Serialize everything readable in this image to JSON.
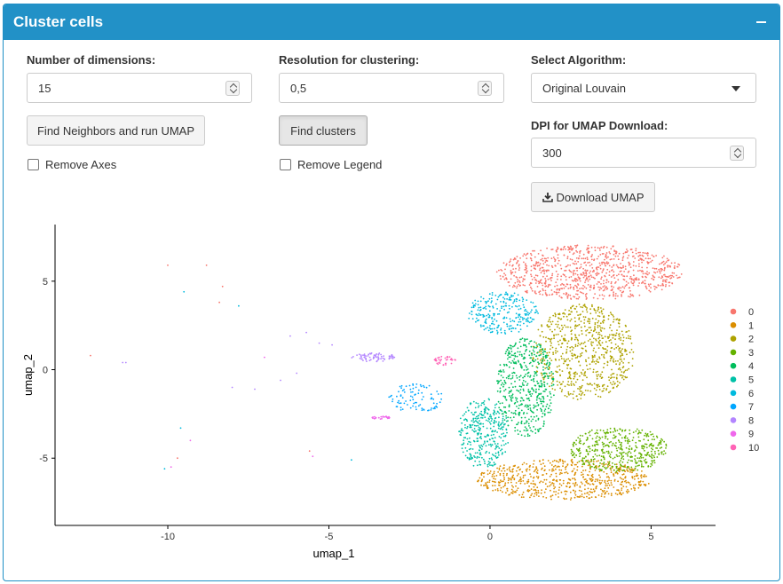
{
  "panel": {
    "title": "Cluster cells"
  },
  "dims": {
    "label": "Number of dimensions:",
    "value": "15"
  },
  "resolution": {
    "label": "Resolution for clustering:",
    "value": "0,5"
  },
  "algorithm": {
    "label": "Select Algorithm:",
    "value": "Original Louvain"
  },
  "dpi": {
    "label": "DPI for UMAP Download:",
    "value": "300"
  },
  "buttons": {
    "neighbors": "Find Neighbors and run UMAP",
    "clusters": "Find clusters",
    "download": "Download UMAP"
  },
  "checkboxes": {
    "axes": "Remove Axes",
    "legend": "Remove Legend"
  },
  "chart_data": {
    "type": "scatter",
    "xlabel": "umap_1",
    "ylabel": "umap_2",
    "xlim": [
      -13.5,
      7
    ],
    "ylim": [
      -8.8,
      8.2
    ],
    "xticks": [
      {
        "value": -10,
        "label": "-10"
      },
      {
        "value": -5,
        "label": "-5"
      },
      {
        "value": 0,
        "label": "0"
      },
      {
        "value": 5,
        "label": "5"
      }
    ],
    "yticks": [
      {
        "value": 5,
        "label": "5"
      },
      {
        "value": 0,
        "label": "0"
      },
      {
        "value": -5,
        "label": "-5"
      }
    ],
    "grid": false,
    "legend_position": "right",
    "series": [
      {
        "name": "0",
        "color": "#f8766d"
      },
      {
        "name": "1",
        "color": "#db8e00"
      },
      {
        "name": "2",
        "color": "#aea200"
      },
      {
        "name": "3",
        "color": "#64b200"
      },
      {
        "name": "4",
        "color": "#00bd5c"
      },
      {
        "name": "5",
        "color": "#00c1a7"
      },
      {
        "name": "6",
        "color": "#00bade"
      },
      {
        "name": "7",
        "color": "#00a6ff"
      },
      {
        "name": "8",
        "color": "#b385ff"
      },
      {
        "name": "9",
        "color": "#ef67eb"
      },
      {
        "name": "10",
        "color": "#ff63b6"
      }
    ],
    "regions": [
      {
        "series": "0",
        "cx": 3.1,
        "cy": 5.5,
        "rx": 2.9,
        "ry": 1.55,
        "n": 900
      },
      {
        "series": "1",
        "cx": 2.3,
        "cy": -6.2,
        "rx": 2.7,
        "ry": 1.15,
        "n": 650
      },
      {
        "series": "2",
        "cx": 2.9,
        "cy": 1.0,
        "rx": 1.6,
        "ry": 2.7,
        "n": 700
      },
      {
        "series": "3",
        "cx": 4.0,
        "cy": -4.5,
        "rx": 1.5,
        "ry": 1.3,
        "n": 450
      },
      {
        "series": "4",
        "cx": 1.1,
        "cy": -1.0,
        "rx": 0.9,
        "ry": 2.8,
        "n": 500
      },
      {
        "series": "5",
        "cx": -0.2,
        "cy": -3.6,
        "rx": 0.8,
        "ry": 2.0,
        "n": 330
      },
      {
        "series": "6",
        "cx": 0.4,
        "cy": 3.2,
        "rx": 1.1,
        "ry": 1.2,
        "n": 250
      },
      {
        "series": "7",
        "cx": -2.3,
        "cy": -1.6,
        "rx": 0.9,
        "ry": 0.8,
        "n": 90
      },
      {
        "series": "8",
        "cx": -3.6,
        "cy": 0.7,
        "rx": 0.7,
        "ry": 0.25,
        "n": 70
      },
      {
        "series": "9",
        "cx": -3.4,
        "cy": -2.7,
        "rx": 0.3,
        "ry": 0.1,
        "n": 25
      },
      {
        "series": "10",
        "cx": -1.4,
        "cy": 0.5,
        "rx": 0.35,
        "ry": 0.25,
        "n": 35
      }
    ],
    "sparse_points": [
      {
        "series": "0",
        "x": -10.0,
        "y": 5.9
      },
      {
        "series": "0",
        "x": -8.8,
        "y": 5.9
      },
      {
        "series": "0",
        "x": -8.3,
        "y": 4.7
      },
      {
        "series": "0",
        "x": -12.4,
        "y": 0.8
      },
      {
        "series": "0",
        "x": -5.6,
        "y": -4.6
      },
      {
        "series": "0",
        "x": -9.7,
        "y": -5.0
      },
      {
        "series": "0",
        "x": -8.4,
        "y": 3.8
      },
      {
        "series": "6",
        "x": -7.8,
        "y": 3.6
      },
      {
        "series": "6",
        "x": -9.5,
        "y": 4.4
      },
      {
        "series": "6",
        "x": -9.6,
        "y": -3.3
      },
      {
        "series": "6",
        "x": -10.1,
        "y": -5.6
      },
      {
        "series": "6",
        "x": -4.3,
        "y": -5.1
      },
      {
        "series": "8",
        "x": -11.4,
        "y": 0.4
      },
      {
        "series": "8",
        "x": -11.3,
        "y": 0.4
      },
      {
        "series": "8",
        "x": -8.0,
        "y": -1.0
      },
      {
        "series": "8",
        "x": -7.3,
        "y": -1.1
      },
      {
        "series": "8",
        "x": -6.5,
        "y": -0.6
      },
      {
        "series": "8",
        "x": -6.0,
        "y": -0.2
      },
      {
        "series": "8",
        "x": -6.2,
        "y": 1.9
      },
      {
        "series": "8",
        "x": -5.7,
        "y": 2.1
      },
      {
        "series": "9",
        "x": -9.9,
        "y": -5.5
      },
      {
        "series": "9",
        "x": -9.3,
        "y": -4.0
      },
      {
        "series": "9",
        "x": -5.5,
        "y": -4.9
      },
      {
        "series": "9",
        "x": -7.0,
        "y": 0.7
      },
      {
        "series": "8",
        "x": -5.3,
        "y": 1.5
      },
      {
        "series": "8",
        "x": -4.9,
        "y": 1.4
      }
    ]
  }
}
